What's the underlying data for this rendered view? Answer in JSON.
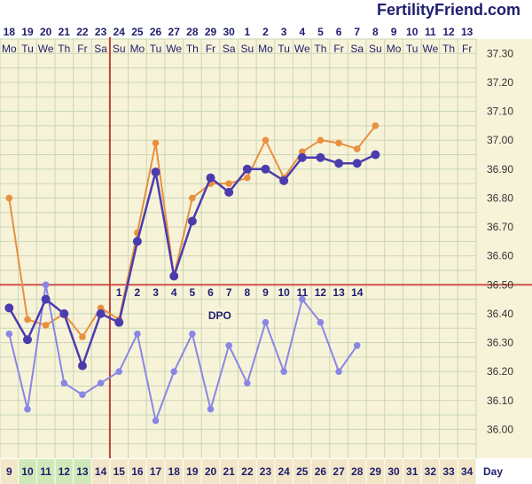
{
  "brand": "FertilityFriend.com",
  "dates": [
    "18",
    "19",
    "20",
    "21",
    "22",
    "23",
    "24",
    "25",
    "26",
    "27",
    "28",
    "29",
    "30",
    "1",
    "2",
    "3",
    "4",
    "5",
    "6",
    "7",
    "8",
    "9",
    "10",
    "11",
    "12",
    "13"
  ],
  "weekdays": [
    "Mo",
    "Tu",
    "We",
    "Th",
    "Fr",
    "Sa",
    "Su",
    "Mo",
    "Tu",
    "We",
    "Th",
    "Fr",
    "Sa",
    "Su",
    "Mo",
    "Tu",
    "We",
    "Th",
    "Fr",
    "Sa",
    "Su",
    "Mo",
    "Tu",
    "We",
    "Th",
    "Fr"
  ],
  "cycle_days": [
    "9",
    "10",
    "11",
    "12",
    "13",
    "14",
    "15",
    "16",
    "17",
    "18",
    "19",
    "20",
    "21",
    "22",
    "23",
    "24",
    "25",
    "26",
    "27",
    "28",
    "29",
    "30",
    "31",
    "32",
    "33",
    "34"
  ],
  "cycle_day_colors": [
    "#f2e6c8",
    "#cfe8b8",
    "#cfe8b8",
    "#cfe8b8",
    "#cfe8b8",
    "#f2e6c8",
    "#f2e6c8",
    "#f2e6c8",
    "#f2e6c8",
    "#f2e6c8",
    "#f2e6c8",
    "#f2e6c8",
    "#f2e6c8",
    "#f2e6c8",
    "#f2e6c8",
    "#f2e6c8",
    "#f2e6c8",
    "#f2e6c8",
    "#f2e6c8",
    "#f2e6c8",
    "#f2e6c8",
    "#f2e6c8",
    "#f2e6c8",
    "#f2e6c8",
    "#f2e6c8",
    "#f2e6c8"
  ],
  "day_axis_label": "Day",
  "dpo_label": "DPO",
  "dpo_numbers": [
    "1",
    "2",
    "3",
    "4",
    "5",
    "6",
    "7",
    "8",
    "9",
    "10",
    "11",
    "12",
    "13",
    "14"
  ],
  "colors": {
    "background": "#f7f3d9",
    "grid": "#c9d6b4",
    "coverline": "#d0534b",
    "ovulation_line": "#c0403a",
    "series_primary": "#4b3cae",
    "series_orange": "#e89040",
    "series_light": "#8a86e6",
    "text": "#1e1e6e"
  },
  "chart_data": {
    "type": "line",
    "title": "",
    "x": [
      "9",
      "10",
      "11",
      "12",
      "13",
      "14",
      "15",
      "16",
      "17",
      "18",
      "19",
      "20",
      "21",
      "22",
      "23",
      "24",
      "25",
      "26",
      "27",
      "28",
      "29",
      "30",
      "31",
      "32",
      "33",
      "34"
    ],
    "ylim": [
      35.9,
      37.35
    ],
    "y_ticks": [
      "37.30",
      "37.20",
      "37.10",
      "37.00",
      "36.90",
      "36.80",
      "36.70",
      "36.60",
      "36.50",
      "36.40",
      "36.30",
      "36.20",
      "36.10",
      "36.00"
    ],
    "coverline": 36.5,
    "ovulation_day": "14",
    "grid": true,
    "series": [
      {
        "key": "orange",
        "values": [
          36.8,
          36.38,
          36.36,
          36.4,
          36.32,
          36.42,
          36.38,
          36.68,
          36.99,
          36.53,
          36.8,
          36.85,
          36.85,
          36.87,
          37.0,
          36.87,
          36.96,
          37.0,
          36.99,
          36.97,
          37.05,
          null,
          null,
          null,
          null,
          null
        ]
      },
      {
        "key": "light",
        "values": [
          36.33,
          36.07,
          36.5,
          36.16,
          36.12,
          36.16,
          36.2,
          36.33,
          36.03,
          36.2,
          36.33,
          36.07,
          36.29,
          36.16,
          36.37,
          36.2,
          36.45,
          36.37,
          36.2,
          36.29,
          null,
          null,
          null,
          null,
          null,
          null
        ]
      },
      {
        "key": "primary",
        "values": [
          36.42,
          36.31,
          36.45,
          36.4,
          36.22,
          36.4,
          36.37,
          36.65,
          36.89,
          36.53,
          36.72,
          36.87,
          36.82,
          36.9,
          36.9,
          36.86,
          36.94,
          36.94,
          36.92,
          36.92,
          36.95,
          null,
          null,
          null,
          null,
          null
        ]
      }
    ]
  }
}
